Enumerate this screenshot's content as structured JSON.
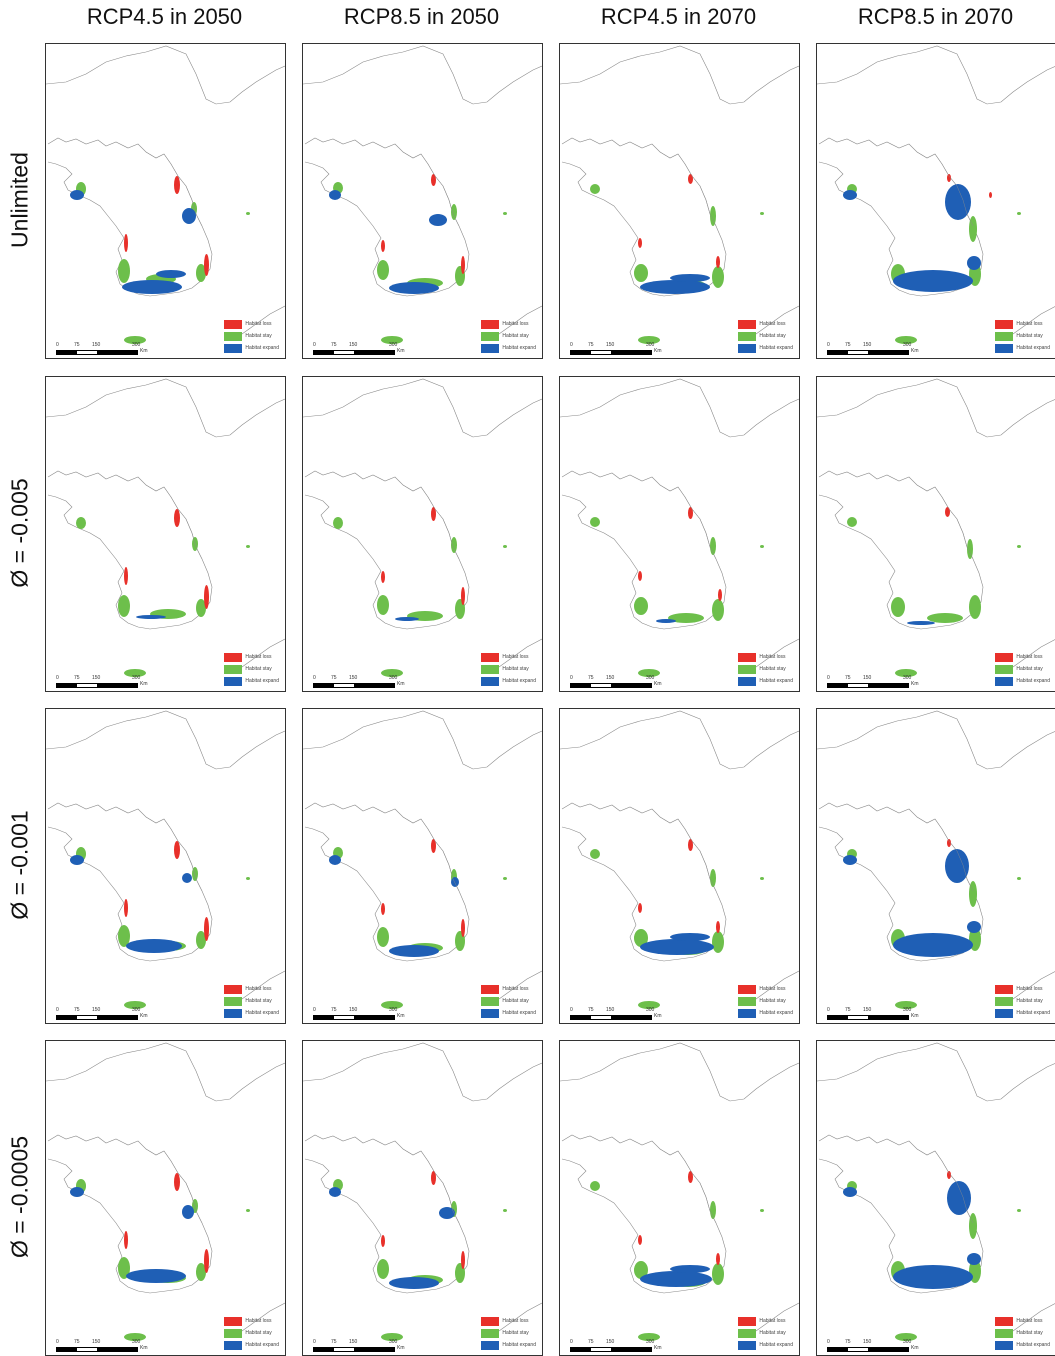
{
  "columns": [
    "RCP4.5 in 2050",
    "RCP8.5 in 2050",
    "RCP4.5 in 2070",
    "RCP8.5 in 2070"
  ],
  "rows": [
    "Unlimited",
    "Ø = -0.005",
    "Ø = -0.001",
    "Ø = -0.0005"
  ],
  "legend": {
    "items": [
      {
        "label": "Habitat loss",
        "color": "#e8302a"
      },
      {
        "label": "Habitat stay",
        "color": "#6dbf4b"
      },
      {
        "label": "Habitat expand",
        "color": "#1f5fb5"
      }
    ]
  },
  "scale": {
    "ticks": [
      "0",
      "75",
      "150",
      "300"
    ],
    "unit": "Km"
  },
  "colors": {
    "outline": "#8a8a8a",
    "loss": "#e8302a",
    "stay": "#6dbf4b",
    "expand": "#1f5fb5"
  }
}
